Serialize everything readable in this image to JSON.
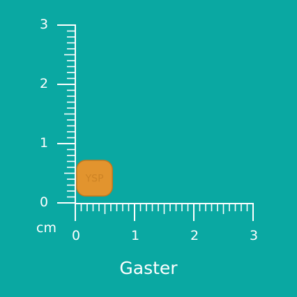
{
  "colors": {
    "background": "#0aa8a2",
    "ruler": "#ffffff",
    "pill": "#e2942e",
    "pill_edge": "#c9761a",
    "pill_imprint": "#cd8324"
  },
  "ruler": {
    "unit": "cm",
    "max": 3,
    "subdivisions": 10,
    "x_labels": [
      "0",
      "1",
      "2",
      "3"
    ],
    "y_labels": [
      "0",
      "1",
      "2",
      "3"
    ]
  },
  "pill": {
    "imprint": "YSP",
    "shape": "rounded-square",
    "width_cm": 0.7,
    "height_cm": 0.7
  },
  "caption": "Gaster"
}
